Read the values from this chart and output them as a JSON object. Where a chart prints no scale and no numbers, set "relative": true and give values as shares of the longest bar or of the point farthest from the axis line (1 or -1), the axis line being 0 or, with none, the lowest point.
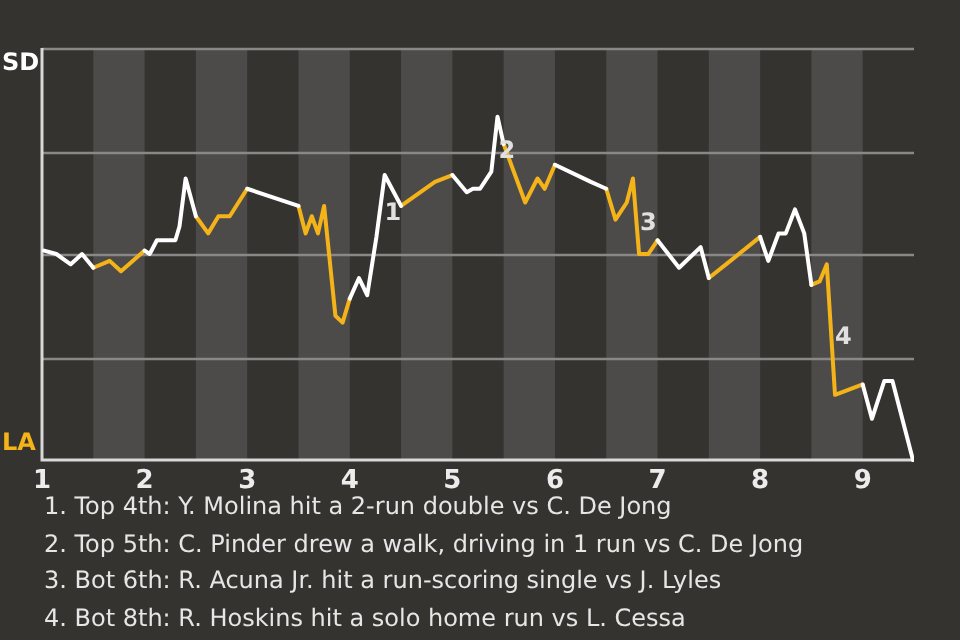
{
  "chart_data": {
    "type": "line",
    "relative": true,
    "xlim": [
      1,
      9.5
    ],
    "xticks": [
      1,
      2,
      3,
      4,
      5,
      6,
      7,
      8,
      9
    ],
    "grid": "y",
    "legend": "left",
    "marker": "none",
    "series": [
      {
        "name": "SD",
        "color": "#ffffff",
        "x": [
          1.02,
          1.14,
          1.28,
          1.39,
          1.5,
          1.75,
          2.0,
          2.05,
          2.12,
          2.3,
          2.34,
          2.4,
          2.5,
          2.75,
          3.0,
          3.5,
          3.75,
          4.0,
          4.09,
          4.17,
          4.26,
          4.34,
          4.5,
          4.75,
          5.0,
          5.14,
          5.2,
          5.27,
          5.38,
          5.44,
          5.5,
          5.75,
          6.0,
          6.35,
          6.5,
          6.75,
          7.0,
          7.21,
          7.42,
          7.5,
          7.75,
          8.0,
          8.08,
          8.18,
          8.25,
          8.34,
          8.43,
          8.5,
          8.75,
          9.0,
          9.09,
          9.21,
          9.29,
          9.49
        ],
        "values": [
          0.61,
          0.6,
          0.57,
          0.6,
          0.56,
          null,
          0.61,
          0.6,
          0.64,
          0.64,
          0.68,
          0.82,
          0.71,
          null,
          0.79,
          0.74,
          null,
          0.47,
          0.53,
          0.48,
          0.65,
          0.83,
          0.74,
          null,
          0.83,
          0.78,
          0.79,
          0.79,
          0.84,
          1,
          0.92,
          null,
          0.86,
          0.81,
          0.79,
          null,
          0.64,
          0.56,
          0.62,
          0.53,
          null,
          0.65,
          0.58,
          0.66,
          0.66,
          0.73,
          0.66,
          0.51,
          null,
          0.22,
          0.12,
          0.23,
          0.23,
          0
        ]
      },
      {
        "name": "LA",
        "color": "#f5b31a",
        "x": [
          1.5,
          1.66,
          1.77,
          2.0,
          2.25,
          2.5,
          2.62,
          2.72,
          2.83,
          3.0,
          3.25,
          3.5,
          3.57,
          3.63,
          3.69,
          3.75,
          3.86,
          3.93,
          4.0,
          4.25,
          4.5,
          4.83,
          5.0,
          5.25,
          5.5,
          5.71,
          5.83,
          5.9,
          6.0,
          6.25,
          6.5,
          6.59,
          6.7,
          6.76,
          6.82,
          6.91,
          7.0,
          7.25,
          7.5,
          7.71,
          8.0,
          8.25,
          8.5,
          8.58,
          8.65,
          8.73,
          9.0
        ],
        "values": [
          0.56,
          0.58,
          0.55,
          0.61,
          null,
          0.71,
          0.66,
          0.71,
          0.71,
          0.79,
          null,
          0.74,
          0.66,
          0.71,
          0.66,
          0.74,
          0.42,
          0.4,
          0.47,
          null,
          0.74,
          0.81,
          0.83,
          null,
          0.92,
          0.75,
          0.82,
          0.79,
          0.86,
          null,
          0.79,
          0.7,
          0.75,
          0.82,
          0.6,
          0.6,
          0.64,
          null,
          0.53,
          0.58,
          0.65,
          null,
          0.51,
          0.52,
          0.57,
          0.19,
          0.22
        ]
      }
    ],
    "bands": [
      {
        "axis": "x",
        "from": 1.5,
        "to": 2,
        "color": "#4d4b49"
      },
      {
        "axis": "x",
        "from": 2.5,
        "to": 3,
        "color": "#4d4b49"
      },
      {
        "axis": "x",
        "from": 3.5,
        "to": 4,
        "color": "#4d4b49"
      },
      {
        "axis": "x",
        "from": 4.5,
        "to": 5,
        "color": "#4d4b49"
      },
      {
        "axis": "x",
        "from": 5.5,
        "to": 6,
        "color": "#4d4b49"
      },
      {
        "axis": "x",
        "from": 6.5,
        "to": 7,
        "color": "#4d4b49"
      },
      {
        "axis": "x",
        "from": 7.5,
        "to": 8,
        "color": "#4d4b49"
      },
      {
        "axis": "x",
        "from": 8.5,
        "to": 9,
        "color": "#4d4b49"
      }
    ],
    "annotations": [
      {
        "text": "1",
        "x": 4.34,
        "y": 0.83
      },
      {
        "text": "2",
        "x": 5.44,
        "y": 1
      },
      {
        "text": "3",
        "x": 6.82,
        "y": 0.6
      },
      {
        "text": "4",
        "x": 8.73,
        "y": 0.19
      },
      "1. Top 4th: Y. Molina hit a 2-run double vs C. De Jong",
      "2. Top 5th: C. Pinder drew a walk, driving in 1 run vs C. De Jong",
      "3. Bot 6th: R. Acuna Jr. hit a run-scoring single vs J. Lyles",
      "4. Bot 8th: R. Hoskins hit a solo home run vs L. Cessa"
    ]
  }
}
